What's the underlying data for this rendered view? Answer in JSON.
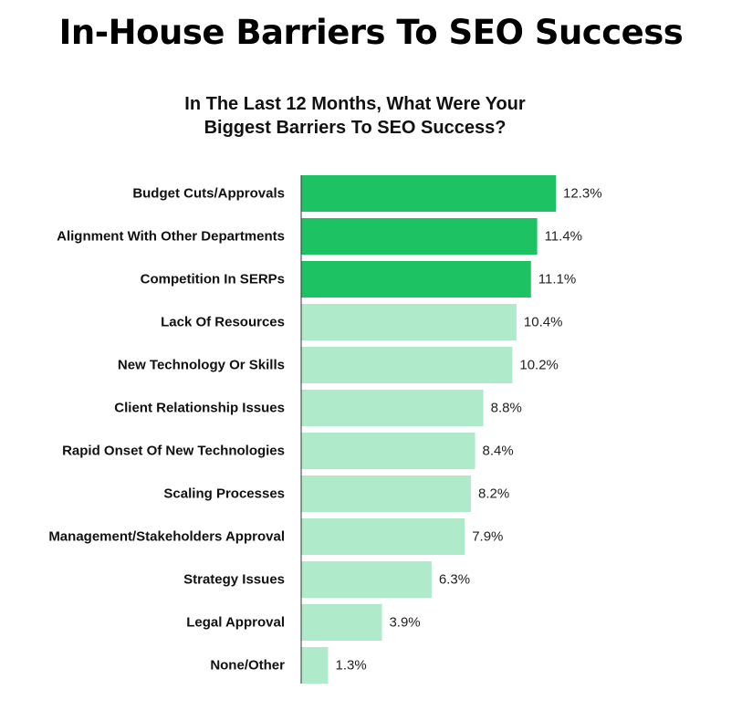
{
  "header": {
    "title": "In-House Barriers To SEO Success",
    "subtitle_line1": "In The Last 12 Months, What Were Your",
    "subtitle_line2": "Biggest Barriers To SEO Success?"
  },
  "colors": {
    "highlight": "#1dc362",
    "normal": "#afeacb",
    "axis": "#333333"
  },
  "chart_data": {
    "type": "bar",
    "orientation": "horizontal",
    "title": "In-House Barriers To SEO Success",
    "subtitle": "In The Last 12 Months, What Were Your Biggest Barriers To SEO Success?",
    "xlabel": "",
    "ylabel": "",
    "categories": [
      "Budget Cuts/Approvals",
      "Alignment With Other Departments",
      "Competition In SERPs",
      "Lack Of Resources",
      "New Technology Or Skills",
      "Client Relationship Issues",
      "Rapid Onset Of New Technologies",
      "Scaling Processes",
      "Management/Stakeholders Approval",
      "Strategy Issues",
      "Legal Approval",
      "None/Other"
    ],
    "values": [
      12.3,
      11.4,
      11.1,
      10.4,
      10.2,
      8.8,
      8.4,
      8.2,
      7.9,
      6.3,
      3.9,
      1.3
    ],
    "value_labels": [
      "12.3%",
      "11.4%",
      "11.1%",
      "10.4%",
      "10.2%",
      "8.8%",
      "8.4%",
      "8.2%",
      "7.9%",
      "6.3%",
      "3.9%",
      "1.3%"
    ],
    "highlighted_top": 3,
    "xlim": [
      0,
      12.3
    ],
    "grid": false,
    "legend": "none"
  }
}
